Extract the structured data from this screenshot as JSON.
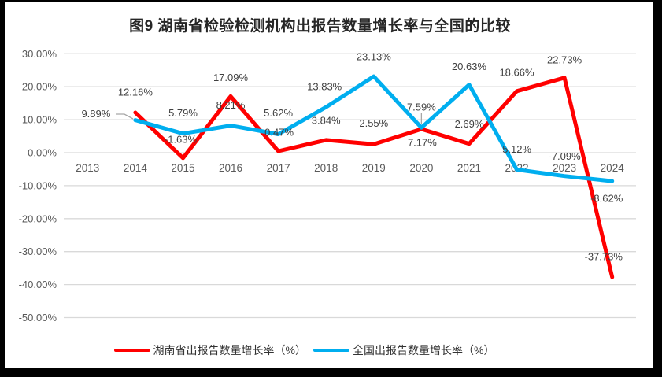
{
  "chart_data": {
    "type": "line",
    "title": "图9 湖南省检验检测机构出报告数量增长率与全国的比较",
    "categories": [
      "2013",
      "2014",
      "2015",
      "2016",
      "2017",
      "2018",
      "2019",
      "2020",
      "2021",
      "2022",
      "2023",
      "2024"
    ],
    "series": [
      {
        "name": "湖南省出报告数量增长率（%）",
        "color": "#FF0000",
        "start_index": 1,
        "values": [
          12.16,
          -1.63,
          17.09,
          0.47,
          3.84,
          2.55,
          7.17,
          2.69,
          18.66,
          22.73,
          -37.73
        ],
        "labels": [
          "12.16%",
          "-1.63%",
          "17.09%",
          "0.47%",
          "3.84%",
          "2.55%",
          "7.17%",
          "2.69%",
          "18.66%",
          "22.73%",
          "-37.73%"
        ]
      },
      {
        "name": "全国出报告数量增长率（%）",
        "color": "#00AEEF",
        "start_index": 1,
        "values": [
          9.89,
          5.79,
          8.21,
          5.62,
          13.83,
          23.13,
          7.59,
          20.63,
          -5.12,
          -7.09,
          -8.62
        ],
        "labels": [
          "9.89%",
          "5.79%",
          "8.21%",
          "5.62%",
          "13.83%",
          "23.13%",
          "7.59%",
          "20.63%",
          "-5.12%",
          "-7.09%",
          "-8.62%"
        ]
      }
    ],
    "y_ticks": [
      "30.00%",
      "20.00%",
      "10.00%",
      "0.00%",
      "-10.00%",
      "-20.00%",
      "-30.00%",
      "-40.00%",
      "-50.00%"
    ],
    "y_tick_values": [
      30,
      20,
      10,
      0,
      -10,
      -20,
      -30,
      -40,
      -50
    ],
    "ylim": [
      -50,
      30
    ],
    "grid": true,
    "legend_position": "bottom",
    "colors": {
      "gridline": "#D9D9D9",
      "axis_text": "#595959",
      "label_text": "#404040",
      "leader_line": "#A6A6A6",
      "title_text": "#262626",
      "frame": "#000000",
      "background": "#FFFFFF"
    }
  }
}
